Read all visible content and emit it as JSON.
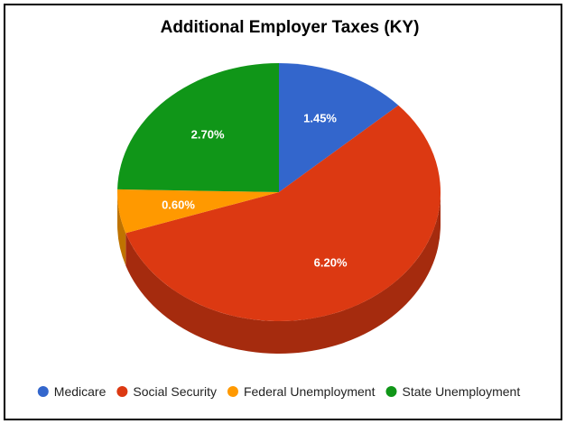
{
  "chart_data": {
    "type": "pie",
    "style": "3d",
    "title": "Additional Employer Taxes (KY)",
    "legend_position": "bottom",
    "slices": [
      {
        "name": "Medicare",
        "value": 1.45,
        "label": "1.45%",
        "color": "#3366cc",
        "side_color": "#264c99"
      },
      {
        "name": "Social Security",
        "value": 6.2,
        "label": "6.20%",
        "color": "#dc3912",
        "side_color": "#a52b0e"
      },
      {
        "name": "Federal Unemployment",
        "value": 0.6,
        "label": "0.60%",
        "color": "#ff9900",
        "side_color": "#bf7300"
      },
      {
        "name": "State Unemployment",
        "value": 2.7,
        "label": "2.70%",
        "color": "#109618",
        "side_color": "#0c7012"
      }
    ]
  }
}
